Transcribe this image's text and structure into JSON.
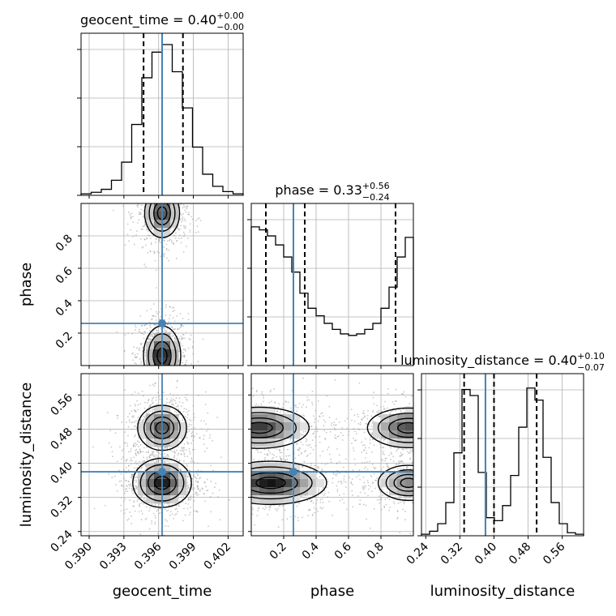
{
  "chart_data": {
    "type": "corner",
    "parameters": [
      "geocent_time",
      "phase",
      "luminosity_distance"
    ],
    "injected_values": {
      "geocent_time": 0.3963,
      "phase": 0.26,
      "luminosity_distance": 0.38
    },
    "titles": {
      "geocent_time": {
        "name": "geocent_time",
        "median": "0.40",
        "upper": "+0.00",
        "lower": "−0.00"
      },
      "phase": {
        "name": "phase",
        "median": "0.33",
        "upper": "+0.56",
        "lower": "−0.24"
      },
      "luminosity_distance": {
        "name": "luminosity_distance",
        "median": "0.40",
        "upper": "+0.10",
        "lower": "−0.07"
      }
    },
    "axes": {
      "geocent_time": {
        "label": "geocent_time",
        "range": [
          0.3893,
          0.4033
        ],
        "ticks": [
          0.39,
          0.393,
          0.396,
          0.399,
          0.402
        ],
        "tick_labels": [
          "0.390",
          "0.393",
          "0.396",
          "0.399",
          "0.402"
        ]
      },
      "phase": {
        "label": "phase",
        "range": [
          0.0,
          1.0
        ],
        "ticks": [
          0.2,
          0.4,
          0.6,
          0.8
        ],
        "tick_labels": [
          "0.2",
          "0.4",
          "0.6",
          "0.8"
        ]
      },
      "luminosity_distance": {
        "label": "luminosity_distance",
        "range": [
          0.23,
          0.61
        ],
        "ticks": [
          0.24,
          0.32,
          0.4,
          0.48,
          0.56
        ],
        "tick_labels": [
          "0.24",
          "0.32",
          "0.40",
          "0.48",
          "0.56"
        ]
      }
    },
    "quantiles": {
      "geocent_time": [
        0.3947,
        0.3963,
        0.3981
      ],
      "phase": [
        0.09,
        0.33,
        0.89
      ],
      "luminosity_distance": [
        0.33,
        0.4,
        0.5
      ]
    },
    "histograms": {
      "geocent_time": [
        0.01,
        0.02,
        0.04,
        0.1,
        0.22,
        0.47,
        0.78,
        0.95,
        1.0,
        0.82,
        0.58,
        0.32,
        0.14,
        0.06,
        0.025,
        0.01
      ],
      "phase": [
        0.92,
        0.9,
        0.86,
        0.8,
        0.72,
        0.62,
        0.48,
        0.38,
        0.33,
        0.28,
        0.24,
        0.21,
        0.2,
        0.21,
        0.24,
        0.28,
        0.38,
        0.52,
        0.72,
        0.85
      ],
      "luminosity_distance": [
        0.01,
        0.03,
        0.08,
        0.22,
        0.55,
        0.97,
        0.93,
        0.42,
        0.12,
        0.1,
        0.2,
        0.4,
        0.72,
        0.98,
        0.9,
        0.52,
        0.22,
        0.08,
        0.02,
        0.01
      ]
    },
    "modes_2d": {
      "geocent_time_phase": [
        [
          0.3963,
          0.06,
          0.0007,
          0.08,
          1.0
        ],
        [
          0.3963,
          0.94,
          0.0007,
          0.07,
          0.8
        ]
      ],
      "geocent_time_luminosity_distance": [
        [
          0.3963,
          0.354,
          0.0011,
          0.025,
          1.0
        ],
        [
          0.3963,
          0.483,
          0.001,
          0.025,
          0.75
        ]
      ],
      "phase_luminosity_distance": [
        [
          0.12,
          0.354,
          0.15,
          0.022,
          1.0
        ],
        [
          0.97,
          0.354,
          0.1,
          0.022,
          0.5
        ],
        [
          0.05,
          0.483,
          0.14,
          0.022,
          0.85
        ],
        [
          0.97,
          0.483,
          0.12,
          0.022,
          0.75
        ]
      ]
    },
    "grid": true,
    "colors": {
      "truth": "#4682b4",
      "line": "#000000",
      "grid": "#b0b0b0"
    }
  }
}
